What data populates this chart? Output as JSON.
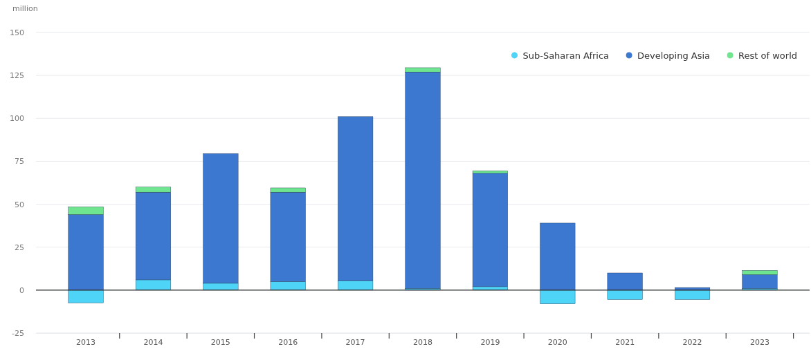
{
  "chart_data": {
    "type": "bar",
    "ylabel": "million",
    "stacked": true,
    "categories": [
      "2013",
      "2014",
      "2015",
      "2016",
      "2017",
      "2018",
      "2019",
      "2020",
      "2021",
      "2022",
      "2023"
    ],
    "series": [
      {
        "name": "Sub-Saharan Africa",
        "color": "#4dd4f7",
        "values": [
          -7.5,
          6,
          4,
          5,
          5.5,
          1,
          2,
          -8,
          -5.5,
          -5.5,
          1
        ]
      },
      {
        "name": "Developing Asia",
        "color": "#3d78d0",
        "values": [
          44,
          51,
          75.5,
          52,
          95.5,
          126,
          66,
          39,
          10,
          1.5,
          8
        ]
      },
      {
        "name": "Rest of world",
        "color": "#6ee58e",
        "values": [
          4.5,
          3,
          0,
          2.5,
          0,
          2.5,
          1.5,
          0,
          0,
          0,
          2.5
        ]
      }
    ],
    "ylim": [
      -25,
      150
    ],
    "yticks": [
      -25,
      0,
      25,
      50,
      75,
      100,
      125,
      150
    ],
    "grid": "y",
    "legend": "top right"
  }
}
